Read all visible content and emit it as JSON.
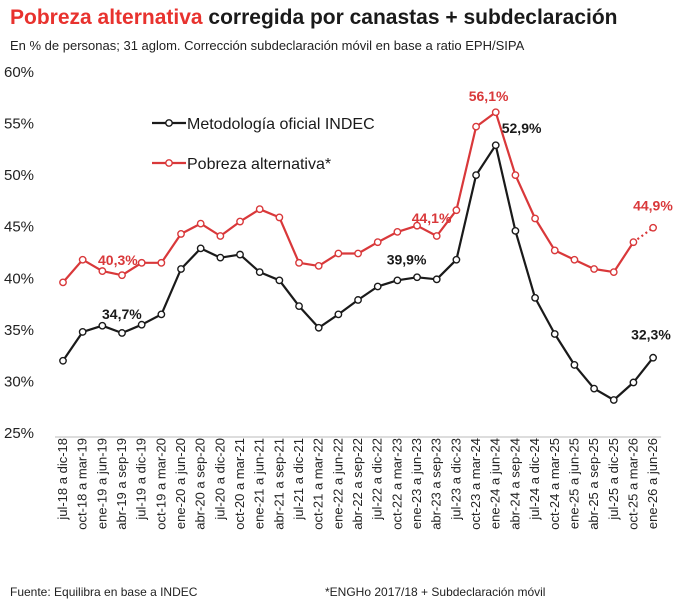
{
  "title": {
    "part1": "Pobreza alternativa",
    "part2": " corregida  por canastas + subdeclaración"
  },
  "subtitle": "En % de personas; 31 aglom. Corrección subdeclaración móvil en base a ratio  EPH/SIPA",
  "footer": {
    "source": "Fuente: Equilibra en base a INDEC",
    "note": "*ENGHo 2017/18 + Subdeclaración móvil"
  },
  "colors": {
    "official": "#1a1a1a",
    "alternative": "#d9383a",
    "title_accent": "#e8322e"
  },
  "chart_data": {
    "type": "line",
    "ylim": [
      25,
      60
    ],
    "yticks": [
      25,
      30,
      35,
      40,
      45,
      50,
      55,
      60
    ],
    "ytick_labels": [
      "25%",
      "30%",
      "35%",
      "40%",
      "45%",
      "50%",
      "55%",
      "60%"
    ],
    "grid": false,
    "legend_position": "top-left",
    "categories": [
      "jul-18 a dic-18",
      "oct-18 a mar-19",
      "ene-19 a jun-19",
      "abr-19 a sep-19",
      "jul-19 a dic-19",
      "oct-19 a mar-20",
      "ene-20 a jun-20",
      "abr-20 a sep-20",
      "jul-20 a dic-20",
      "oct-20 a mar-21",
      "ene-21 a jun-21",
      "abr-21 a sep-21",
      "jul-21 a dic-21",
      "oct-21 a mar-22",
      "ene-22 a jun-22",
      "abr-22 a sep-22",
      "jul-22 a dic-22",
      "oct-22 a mar-23",
      "ene-23 a jun-23",
      "abr-23 a sep-23",
      "jul-23 a dic-23",
      "oct-23 a mar-24",
      "ene-24 a jun-24",
      "abr-24 a sep-24",
      "jul-24 a dic-24",
      "oct-24 a mar-25",
      "ene-25 a jun-25",
      "abr-25 a sep-25",
      "jul-25 a dic-25",
      "oct-25 a mar-26",
      "ene-26 a jun-26"
    ],
    "series": [
      {
        "name": "Metodología oficial INDEC",
        "color": "#1a1a1a",
        "values": [
          32.0,
          34.8,
          35.4,
          34.7,
          35.5,
          36.5,
          40.9,
          42.9,
          42.0,
          42.3,
          40.6,
          39.8,
          37.3,
          35.2,
          36.5,
          37.9,
          39.2,
          39.8,
          40.1,
          39.9,
          41.8,
          50.0,
          52.9,
          44.6,
          38.1,
          34.6,
          31.6,
          29.3,
          28.2,
          29.9,
          32.3
        ]
      },
      {
        "name": "Pobreza alternativa*",
        "color": "#d9383a",
        "values": [
          39.6,
          41.8,
          40.7,
          40.3,
          41.5,
          41.5,
          44.3,
          45.3,
          44.1,
          45.5,
          46.7,
          45.9,
          41.5,
          41.2,
          42.4,
          42.4,
          43.5,
          44.5,
          45.1,
          44.1,
          46.6,
          54.7,
          56.1,
          50.0,
          45.8,
          42.7,
          41.8,
          40.9,
          40.6,
          43.5,
          44.9
        ],
        "dotted_last_segment": true
      }
    ],
    "annotations": [
      {
        "series": 0,
        "index": 3,
        "text": "34,7%"
      },
      {
        "series": 0,
        "index": 19,
        "text": "39,9%"
      },
      {
        "series": 0,
        "index": 22,
        "text": "52,9%"
      },
      {
        "series": 0,
        "index": 30,
        "text": "32,3%"
      },
      {
        "series": 1,
        "index": 3,
        "text": "40,3%"
      },
      {
        "series": 1,
        "index": 19,
        "text": "44,1%"
      },
      {
        "series": 1,
        "index": 22,
        "text": "56,1%"
      },
      {
        "series": 1,
        "index": 30,
        "text": "44,9%"
      }
    ]
  }
}
